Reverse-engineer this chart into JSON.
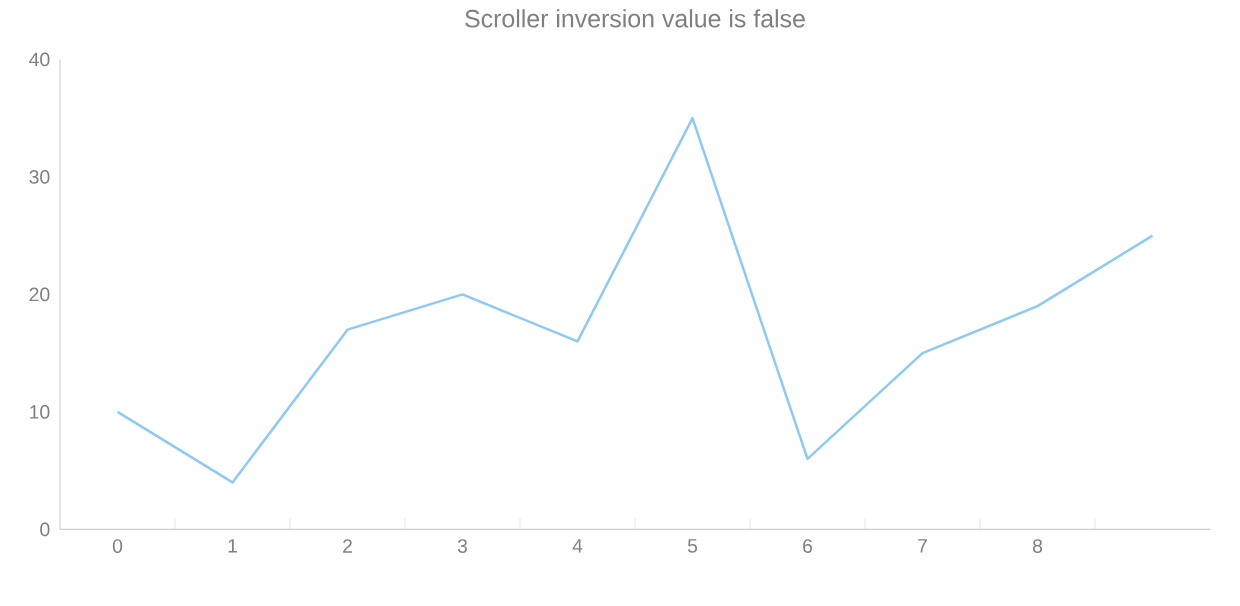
{
  "chart_data": {
    "type": "line",
    "title": "Scroller inversion value is false",
    "categories": [
      "0",
      "1",
      "2",
      "3",
      "4",
      "5",
      "6",
      "7",
      "8",
      null
    ],
    "values": [
      10,
      4,
      17,
      20,
      16,
      35,
      6,
      15,
      19,
      25
    ],
    "color": "#8ec9f5",
    "ylim": [
      0,
      40
    ],
    "yticks": [
      0,
      10,
      20,
      30,
      40
    ],
    "grid": false,
    "marker": "none",
    "line_style": "solid"
  }
}
